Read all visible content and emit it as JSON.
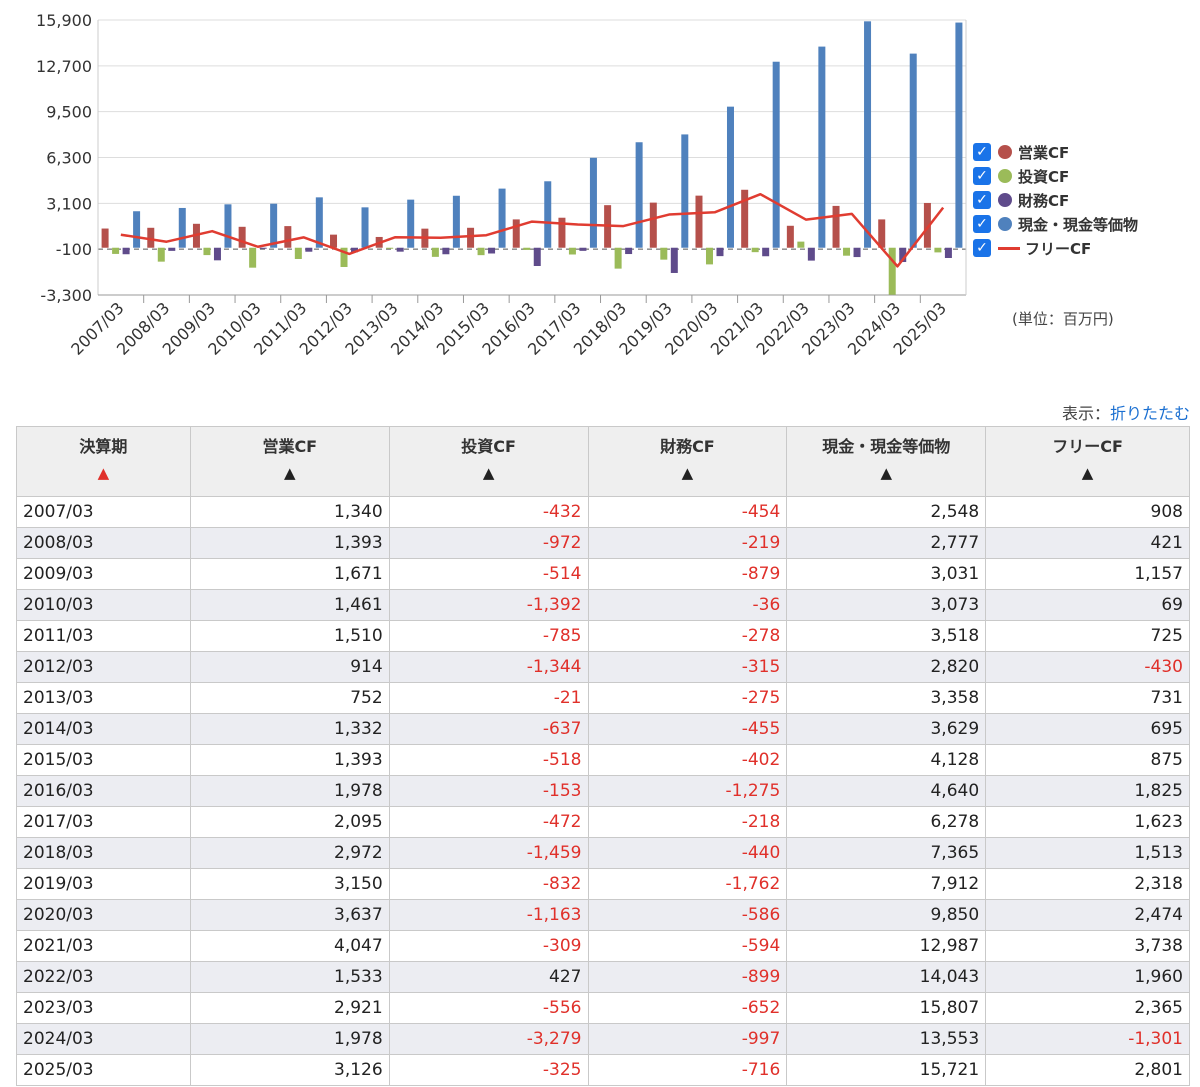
{
  "chart_data": {
    "type": "bar",
    "categories": [
      "2007/03",
      "2008/03",
      "2009/03",
      "2010/03",
      "2011/03",
      "2012/03",
      "2013/03",
      "2014/03",
      "2015/03",
      "2016/03",
      "2017/03",
      "2018/03",
      "2019/03",
      "2020/03",
      "2021/03",
      "2022/03",
      "2023/03",
      "2024/03",
      "2025/03"
    ],
    "y_ticks": [
      "15,900",
      "12,700",
      "9,500",
      "6,300",
      "3,100",
      "-100",
      "-3,300"
    ],
    "ylim": [
      -3300,
      15900
    ],
    "series": [
      {
        "name": "営業CF",
        "type": "bar",
        "color": "#b5504b",
        "values": [
          1340,
          1393,
          1671,
          1461,
          1510,
          914,
          752,
          1332,
          1393,
          1978,
          2095,
          2972,
          3150,
          3637,
          4047,
          1533,
          2921,
          1978,
          3126
        ]
      },
      {
        "name": "投資CF",
        "type": "bar",
        "color": "#9bbb59",
        "values": [
          -432,
          -972,
          -514,
          -1392,
          -785,
          -1344,
          -21,
          -637,
          -518,
          -153,
          -472,
          -1459,
          -832,
          -1163,
          -309,
          427,
          -556,
          -3279,
          -325
        ]
      },
      {
        "name": "財務CF",
        "type": "bar",
        "color": "#5f4b8b",
        "values": [
          -454,
          -219,
          -879,
          -36,
          -278,
          -315,
          -275,
          -455,
          -402,
          -1275,
          -218,
          -440,
          -1762,
          -586,
          -594,
          -899,
          -652,
          -997,
          -716
        ]
      },
      {
        "name": "現金・現金等価物",
        "type": "bar",
        "color": "#4f81bd",
        "values": [
          2548,
          2777,
          3031,
          3073,
          3518,
          2820,
          3358,
          3629,
          4128,
          4640,
          6278,
          7365,
          7912,
          9850,
          12987,
          14043,
          15807,
          13553,
          15721
        ]
      },
      {
        "name": "フリーCF",
        "type": "line",
        "color": "#e03c31",
        "values": [
          908,
          421,
          1157,
          69,
          725,
          -430,
          731,
          695,
          875,
          1825,
          1623,
          1513,
          2318,
          2474,
          3738,
          1960,
          2365,
          -1301,
          2801
        ]
      }
    ],
    "legend_position": "right",
    "unit_note": "(単位：百万円)"
  },
  "legend": [
    {
      "label": "営業CF",
      "color": "#b5504b",
      "kind": "dot"
    },
    {
      "label": "投資CF",
      "color": "#9bbb59",
      "kind": "dot"
    },
    {
      "label": "財務CF",
      "color": "#5f4b8b",
      "kind": "dot"
    },
    {
      "label": "現金・現金等価物",
      "color": "#4f81bd",
      "kind": "dot"
    },
    {
      "label": "フリーCF",
      "color": "#e03c31",
      "kind": "line"
    }
  ],
  "unit_note": "(単位：百万円)",
  "display": {
    "label": "表示：",
    "link": "折りたたむ"
  },
  "table": {
    "headers": [
      "決算期",
      "営業CF",
      "投資CF",
      "財務CF",
      "現金・現金等価物",
      "フリーCF"
    ],
    "sort_icons": [
      "▲",
      "▲",
      "▲",
      "▲",
      "▲",
      "▲"
    ],
    "rows": [
      [
        "2007/03",
        "1,340",
        "-432",
        "-454",
        "2,548",
        "908"
      ],
      [
        "2008/03",
        "1,393",
        "-972",
        "-219",
        "2,777",
        "421"
      ],
      [
        "2009/03",
        "1,671",
        "-514",
        "-879",
        "3,031",
        "1,157"
      ],
      [
        "2010/03",
        "1,461",
        "-1,392",
        "-36",
        "3,073",
        "69"
      ],
      [
        "2011/03",
        "1,510",
        "-785",
        "-278",
        "3,518",
        "725"
      ],
      [
        "2012/03",
        "914",
        "-1,344",
        "-315",
        "2,820",
        "-430"
      ],
      [
        "2013/03",
        "752",
        "-21",
        "-275",
        "3,358",
        "731"
      ],
      [
        "2014/03",
        "1,332",
        "-637",
        "-455",
        "3,629",
        "695"
      ],
      [
        "2015/03",
        "1,393",
        "-518",
        "-402",
        "4,128",
        "875"
      ],
      [
        "2016/03",
        "1,978",
        "-153",
        "-1,275",
        "4,640",
        "1,825"
      ],
      [
        "2017/03",
        "2,095",
        "-472",
        "-218",
        "6,278",
        "1,623"
      ],
      [
        "2018/03",
        "2,972",
        "-1,459",
        "-440",
        "7,365",
        "1,513"
      ],
      [
        "2019/03",
        "3,150",
        "-832",
        "-1,762",
        "7,912",
        "2,318"
      ],
      [
        "2020/03",
        "3,637",
        "-1,163",
        "-586",
        "9,850",
        "2,474"
      ],
      [
        "2021/03",
        "4,047",
        "-309",
        "-594",
        "12,987",
        "3,738"
      ],
      [
        "2022/03",
        "1,533",
        "427",
        "-899",
        "14,043",
        "1,960"
      ],
      [
        "2023/03",
        "2,921",
        "-556",
        "-652",
        "15,807",
        "2,365"
      ],
      [
        "2024/03",
        "1,978",
        "-3,279",
        "-997",
        "13,553",
        "-1,301"
      ],
      [
        "2025/03",
        "3,126",
        "-325",
        "-716",
        "15,721",
        "2,801"
      ]
    ]
  },
  "colors": {
    "negative": "#e03c31",
    "link": "#1a6fd1",
    "checkbox": "#1a73e8"
  }
}
